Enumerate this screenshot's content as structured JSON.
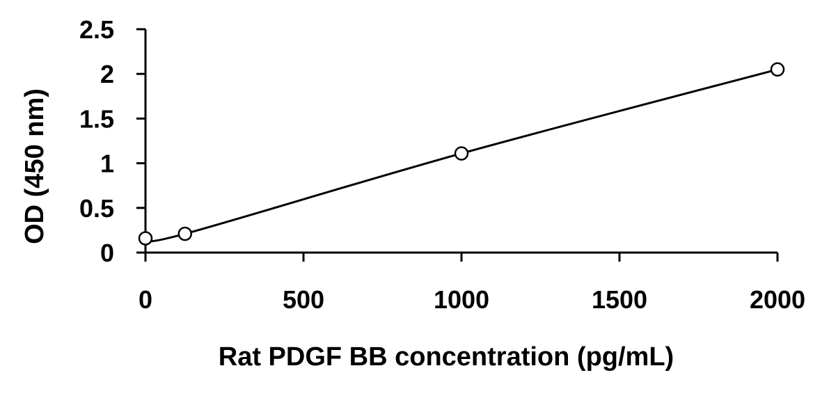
{
  "chart_data": {
    "type": "scatter",
    "title": "",
    "xlabel": "Rat PDGF BB concentration (pg/mL)",
    "ylabel": "OD (450 nm)",
    "xlim": [
      0,
      2000
    ],
    "ylim": [
      0,
      2.5
    ],
    "xticks": [
      "0",
      "500",
      "1000",
      "1500",
      "2000"
    ],
    "yticks": [
      "0",
      "0.5",
      "1",
      "1.5",
      "2",
      "2.5"
    ],
    "series": [
      {
        "x": [
          0,
          125,
          1000,
          2000
        ],
        "y": [
          0.16,
          0.21,
          1.11,
          2.05
        ],
        "marker": "open-circle",
        "line": "smooth"
      }
    ],
    "grid": false,
    "legend": "none",
    "colors": {
      "line": "#000000",
      "marker_fill": "#ffffff",
      "marker_stroke": "#000000",
      "axis": "#000000"
    }
  }
}
